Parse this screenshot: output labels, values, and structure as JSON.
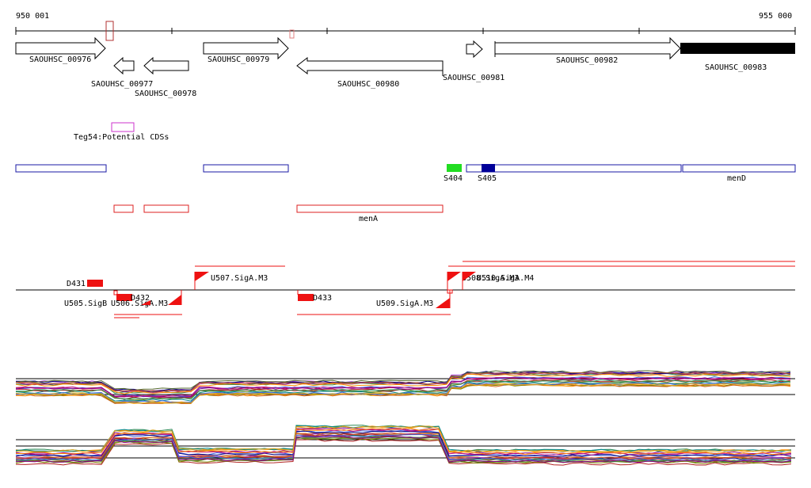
{
  "ruler": {
    "start_label": "950 001",
    "end_label": "955 000"
  },
  "genes": [
    {
      "label": "SAOUHSC_00976",
      "strand": "+",
      "filled": false
    },
    {
      "label": "SAOUHSC_00977",
      "strand": "-",
      "filled": false
    },
    {
      "label": "SAOUHSC_00978",
      "strand": "-",
      "filled": false
    },
    {
      "label": "SAOUHSC_00979",
      "strand": "+",
      "filled": false
    },
    {
      "label": "SAOUHSC_00980",
      "strand": "-",
      "filled": false
    },
    {
      "label": "SAOUHSC_00981",
      "strand": "+",
      "filled": false
    },
    {
      "label": "SAOUHSC_00982",
      "strand": "+",
      "filled": false
    },
    {
      "label": "SAOUHSC_00983",
      "strand": "+",
      "filled": true
    }
  ],
  "teg_feature": {
    "label": "Teg54:Potential CDSs",
    "color": "#cc33cc"
  },
  "blue_track": {
    "color": "#1a1aa6",
    "labels": {
      "s404": "S404",
      "s405": "S405",
      "mend": "menD"
    },
    "s404_color": "#22dd22",
    "s405_color": "#000099"
  },
  "red_track": {
    "color": "#dd2222",
    "label": "menA"
  },
  "tss_track": {
    "color": "#ee1111",
    "labels": {
      "d431": "D431",
      "d432": "D432",
      "d433": "D433",
      "u505": "U505.SigB",
      "u506": "U506.SigA.M3",
      "u507": "U507.SigA.M3",
      "u509": "U509.SigA.M3",
      "u508": "U508.SigA.M3",
      "u510": "U510.SigA.M4"
    }
  },
  "expression_palette": [
    "#b22222",
    "#2e8b57",
    "#4169e1",
    "#daa520",
    "#8b008b",
    "#ff8c00",
    "#808000",
    "#00868b",
    "#cd5c5c",
    "#6b8e23",
    "#9932cc",
    "#d2691e",
    "#000080",
    "#556b2f",
    "#c71585",
    "#a0522d"
  ]
}
